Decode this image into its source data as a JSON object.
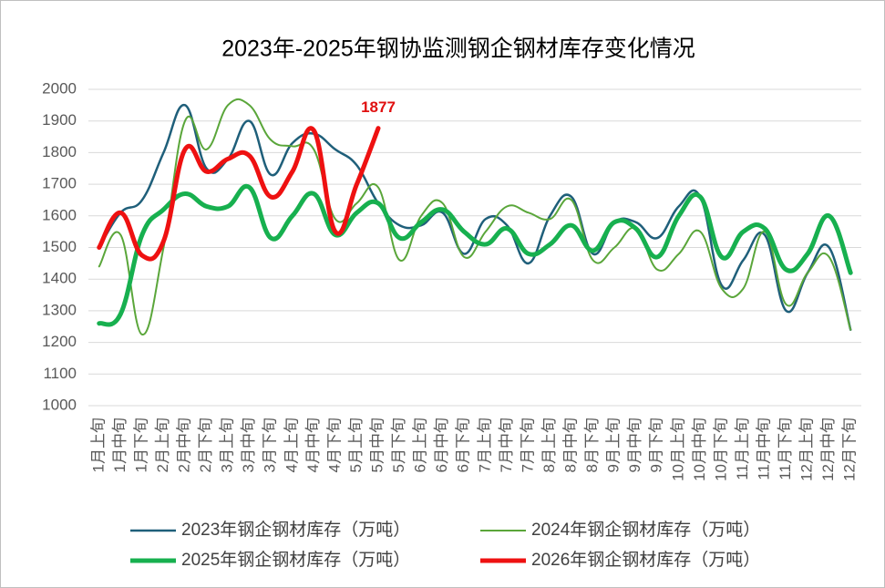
{
  "chart_data": {
    "type": "line",
    "title": "2023年-2025年钢协监测钢企钢材库存变化情况",
    "categories": [
      "1月上旬",
      "1月中旬",
      "1月下旬",
      "2月上旬",
      "2月中旬",
      "2月下旬",
      "3月上旬",
      "3月中旬",
      "3月下旬",
      "4月上旬",
      "4月中旬",
      "4月下旬",
      "5月上旬",
      "5月中旬",
      "5月下旬",
      "6月上旬",
      "6月中旬",
      "6月下旬",
      "7月上旬",
      "7月中旬",
      "7月下旬",
      "8月上旬",
      "8月中旬",
      "8月下旬",
      "9月上旬",
      "9月中旬",
      "9月下旬",
      "10月上旬",
      "10月中旬",
      "10月下旬",
      "11月上旬",
      "11月中旬",
      "11月下旬",
      "12月上旬",
      "12月中旬",
      "12月下旬"
    ],
    "series": [
      {
        "name": "2023年钢企钢材库存（万吨）",
        "color": "#1f5f7a",
        "width": 2.5,
        "values": [
          1500,
          1610,
          1650,
          1800,
          1950,
          1750,
          1780,
          1900,
          1730,
          1830,
          1860,
          1810,
          1760,
          1640,
          1570,
          1570,
          1610,
          1480,
          1590,
          1570,
          1450,
          1600,
          1660,
          1480,
          1580,
          1580,
          1530,
          1630,
          1660,
          1380,
          1460,
          1540,
          1300,
          1420,
          1500,
          1240
        ]
      },
      {
        "name": "2024年钢企钢材库存（万吨）",
        "color": "#5aa63a",
        "width": 2,
        "values": [
          1440,
          1540,
          1225,
          1500,
          1900,
          1810,
          1950,
          1950,
          1840,
          1820,
          1810,
          1590,
          1640,
          1690,
          1460,
          1600,
          1640,
          1470,
          1550,
          1630,
          1610,
          1590,
          1650,
          1460,
          1500,
          1560,
          1430,
          1480,
          1550,
          1370,
          1370,
          1550,
          1320,
          1420,
          1470,
          1240
        ]
      },
      {
        "name": "2025年钢企钢材库存（万吨）",
        "color": "#17b04f",
        "width": 5,
        "values": [
          1260,
          1290,
          1540,
          1620,
          1670,
          1630,
          1630,
          1690,
          1530,
          1600,
          1670,
          1540,
          1610,
          1640,
          1530,
          1580,
          1620,
          1550,
          1510,
          1560,
          1480,
          1510,
          1570,
          1490,
          1580,
          1560,
          1470,
          1600,
          1660,
          1470,
          1550,
          1560,
          1430,
          1480,
          1600,
          1420
        ]
      },
      {
        "name": "2026年钢企钢材库存（万吨）",
        "color": "#ee1111",
        "width": 5,
        "label_last": true,
        "values": [
          1500,
          1610,
          1475,
          1520,
          1810,
          1740,
          1780,
          1790,
          1660,
          1740,
          1870,
          1550,
          1700,
          1877,
          null,
          null,
          null,
          null,
          null,
          null,
          null,
          null,
          null,
          null,
          null,
          null,
          null,
          null,
          null,
          null,
          null,
          null,
          null,
          null,
          null,
          null
        ]
      }
    ],
    "ylim": [
      1000,
      2000
    ],
    "yticks": [
      1000,
      1100,
      1200,
      1300,
      1400,
      1500,
      1600,
      1700,
      1800,
      1900,
      2000
    ],
    "grid": true
  }
}
